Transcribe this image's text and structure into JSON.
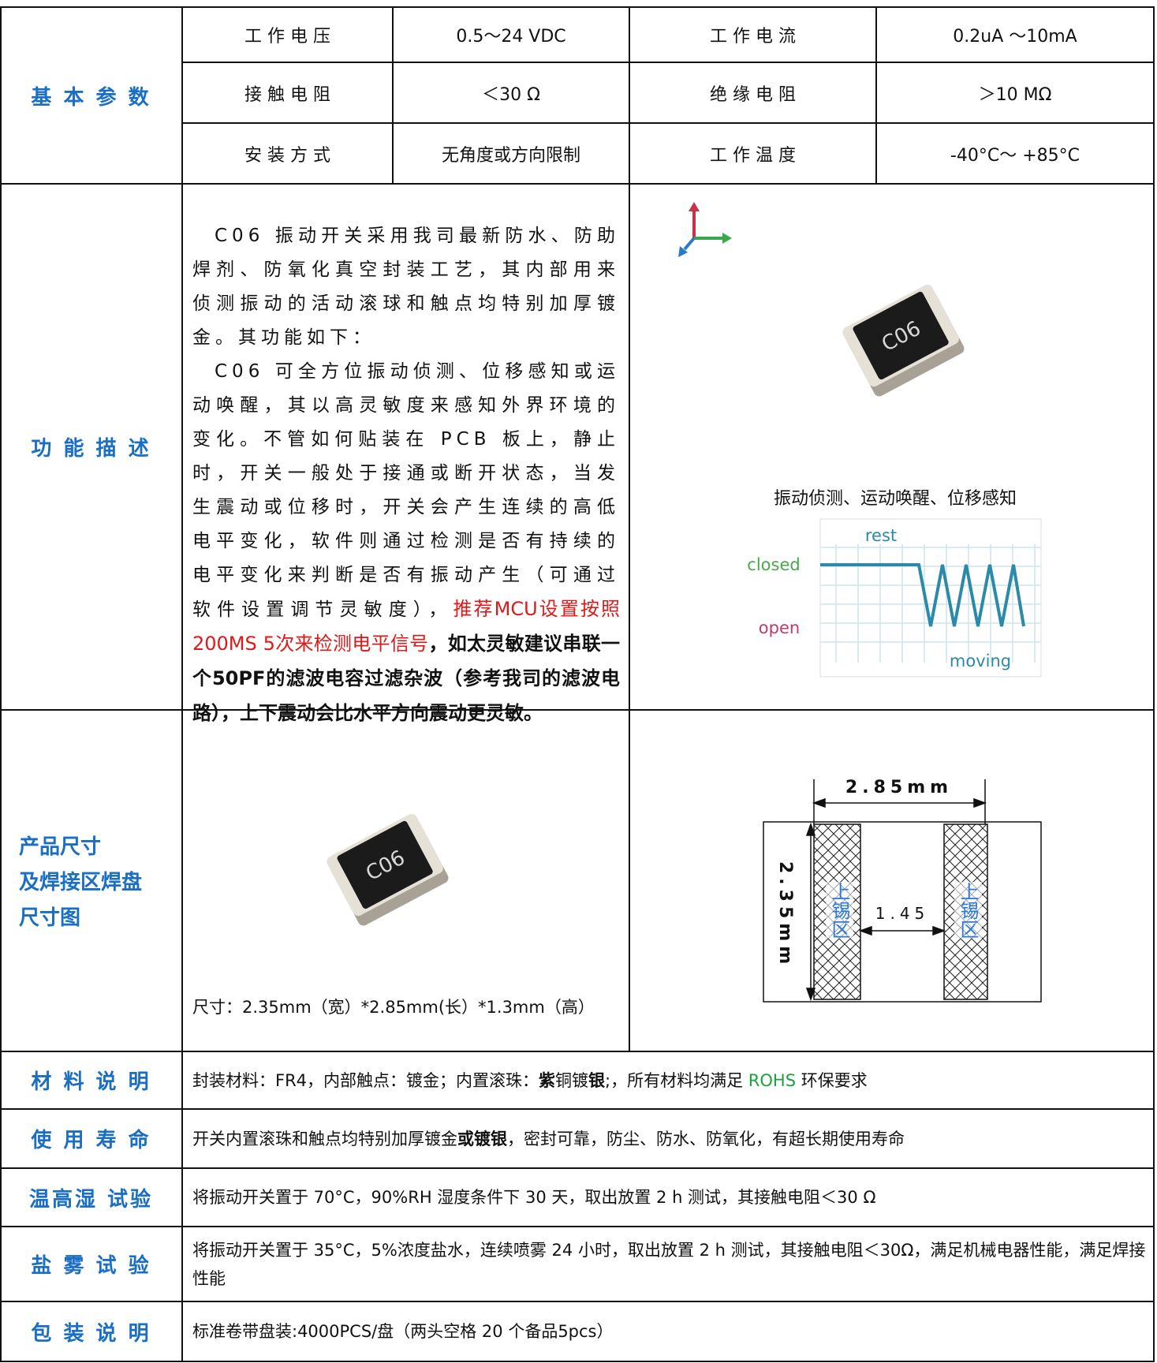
{
  "basic": {
    "label": "基 本 参 数",
    "rows": [
      [
        "工 作 电 压",
        "0.5～24 VDC",
        "工 作 电 流",
        "0.2uA ～10mA"
      ],
      [
        "接 触 电 阻",
        "＜30 Ω",
        "绝 缘 电 阻",
        "＞10 MΩ"
      ],
      [
        "安 装 方 式",
        "无角度或方向限制",
        "工 作 温 度",
        "-40°C～ +85°C"
      ]
    ]
  },
  "function": {
    "label": "功 能 描 述",
    "paragraph_1": "C06 振动开关采用我司最新防水、防助焊剂、防氧化真空封装工艺，其内部用来侦测振动的活动滚球和触点均特别加厚镀金。其功能如下：",
    "paragraph_2": "C06 可全方位振动侦测、位移感知或运动唤醒，其以高灵敏度来感知外界环境的变化。不管如何贴装在 PCB 板上，静止时，开关一般处于接通或断开状态，当发生震动或位移时，开关会产生连续的高低电平变化，软件则通过检测是否有持续的电平变化来判断是否有振动产生（可通过软件设置调节灵敏度），",
    "recommendation": "推荐MCU设置按照200MS 5次来检测电平信号",
    "note": "，如太灵敏建议串联一个50PF的滤波电容过滤杂波（参考我司的滤波电路），上下震动会比水平方向震动更灵敏。",
    "chip_label": "C06",
    "caption": "振动侦测、运动唤醒、位移感知",
    "signal": {
      "rest": "rest",
      "closed": "closed",
      "open": "open",
      "moving": "moving"
    }
  },
  "size": {
    "label": [
      "产品尺寸",
      "及焊接区焊盘",
      "尺寸图"
    ],
    "chip_label": "C06",
    "dimensions": "尺寸：2.35mm（宽）*2.85mm(长）*1.3mm（高）",
    "length": "2.85mm",
    "width": "2.35mm",
    "gap": "1.45",
    "pad_label_left": "上锡区",
    "pad_label_right": "上锡区"
  },
  "rows": [
    {
      "label": "材 料 说 明",
      "parts": [
        {
          "text": "封装材料：FR4，内部触点：镀金；内置滚珠："
        },
        {
          "text": "紫",
          "bold": true
        },
        {
          "text": "铜镀"
        },
        {
          "text": "银",
          "bold": true
        },
        {
          "text": ";，所有材料均满足 "
        },
        {
          "text": "ROHS",
          "color": "#1aa33a"
        },
        {
          "text": " 环保要求"
        }
      ]
    },
    {
      "label": "使 用 寿 命",
      "parts": [
        {
          "text": "开关内置滚珠和触点均特别加厚镀金"
        },
        {
          "text": "或镀银",
          "bold": true
        },
        {
          "text": "，密封可靠，防尘、防水、防氧化，有超长期使用寿命"
        }
      ]
    },
    {
      "label": "温高湿 试验",
      "parts": [
        {
          "text": "将振动开关置于 70°C，90%RH 湿度条件下 30 天，取出放置 2 h 测试，其接触电阻＜30 Ω"
        }
      ]
    },
    {
      "label": "盐 雾 试 验",
      "parts": [
        {
          "text": "将振动开关置于 35°C，5%浓度盐水，连续喷雾 24 小时，取出放置 2 h 测试，其接触电阻＜30Ω，满足机械电器性能，满足焊接性能"
        }
      ]
    },
    {
      "label": "包 装 说 明",
      "parts": [
        {
          "text": "标准卷带盘装:4000PCS/盘（两头空格 20 个备品5pcs）"
        }
      ]
    }
  ]
}
